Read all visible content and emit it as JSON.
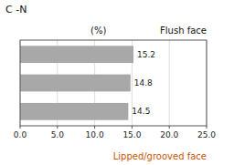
{
  "chart_data": {
    "type": "bar",
    "orientation": "horizontal",
    "title": "C -N",
    "x_label": "(%)",
    "categories": [
      null,
      null,
      null
    ],
    "values": [
      15.2,
      14.8,
      14.5
    ],
    "color": "#a8a8a8",
    "data_labels": true,
    "grid": true,
    "tick_labels": "x",
    "xlim": [
      0,
      25.0
    ],
    "xticks": [
      {
        "value": 0.0,
        "label": "0.0"
      },
      {
        "value": 5.0,
        "label": "5.0"
      },
      {
        "value": 10.0,
        "label": "10.0"
      },
      {
        "value": 15.0,
        "label": "15.0"
      },
      {
        "value": 20.0,
        "label": "20.0"
      },
      {
        "value": 25.0,
        "label": "25.0"
      }
    ],
    "annotations": [
      {
        "text": "Flush face"
      },
      {
        "text": "Lipped/grooved face",
        "color": "#cc5500"
      }
    ]
  }
}
